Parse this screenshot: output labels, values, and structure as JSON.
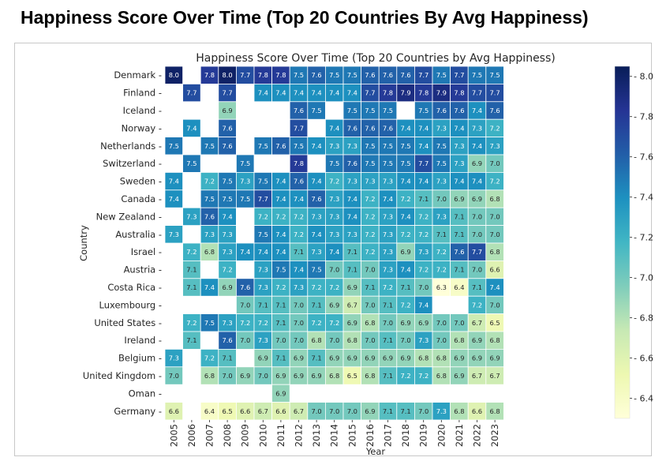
{
  "page": {
    "heading": "Happiness Score Over Time (Top 20 Countries By Avg Happiness)"
  },
  "chart_data": {
    "type": "heatmap",
    "title": "Happiness Score Over Time (Top 20 Countries by Avg Happiness)",
    "xlabel": "Year",
    "ylabel": "Country",
    "colormap": "YlGnBu",
    "value_range": [
      6.3,
      8.05
    ],
    "colorbar_ticks": [
      8.0,
      7.8,
      7.6,
      7.4,
      7.2,
      7.0,
      6.8,
      6.6,
      6.4
    ],
    "years": [
      "2005",
      "2006",
      "2007",
      "2008",
      "2009",
      "2010",
      "2011",
      "2012",
      "2013",
      "2014",
      "2015",
      "2016",
      "2017",
      "2018",
      "2019",
      "2020",
      "2021",
      "2022",
      "2023"
    ],
    "countries": [
      "Denmark",
      "Finland",
      "Iceland",
      "Norway",
      "Netherlands",
      "Switzerland",
      "Sweden",
      "Canada",
      "New Zealand",
      "Australia",
      "Israel",
      "Austria",
      "Costa Rica",
      "Luxembourg",
      "United States",
      "Ireland",
      "Belgium",
      "United Kingdom",
      "Oman",
      "Germany"
    ],
    "values": [
      [
        8.0,
        null,
        7.8,
        8.0,
        7.7,
        7.8,
        7.8,
        7.5,
        7.6,
        7.5,
        7.5,
        7.6,
        7.6,
        7.6,
        7.7,
        7.5,
        7.7,
        7.5,
        7.5
      ],
      [
        null,
        7.7,
        null,
        7.7,
        null,
        7.4,
        7.4,
        7.4,
        7.4,
        7.4,
        7.4,
        7.7,
        7.8,
        7.9,
        7.8,
        7.9,
        7.8,
        7.7,
        7.7
      ],
      [
        null,
        null,
        null,
        6.9,
        null,
        null,
        null,
        7.6,
        7.5,
        null,
        7.5,
        7.5,
        7.5,
        null,
        7.5,
        7.6,
        7.6,
        7.4,
        7.6
      ],
      [
        null,
        7.4,
        null,
        7.6,
        null,
        null,
        null,
        7.7,
        null,
        7.4,
        7.6,
        7.6,
        7.6,
        7.4,
        7.4,
        7.3,
        7.4,
        7.3,
        7.2
      ],
      [
        7.5,
        null,
        7.5,
        7.6,
        null,
        7.5,
        7.6,
        7.5,
        7.4,
        7.3,
        7.3,
        7.5,
        7.5,
        7.5,
        7.4,
        7.5,
        7.3,
        7.4,
        7.3
      ],
      [
        null,
        7.5,
        null,
        null,
        7.5,
        null,
        null,
        7.8,
        null,
        7.5,
        7.6,
        7.5,
        7.5,
        7.5,
        7.7,
        7.5,
        7.3,
        6.9,
        7.0
      ],
      [
        7.4,
        null,
        7.2,
        7.5,
        7.3,
        7.5,
        7.4,
        7.6,
        7.4,
        7.2,
        7.3,
        7.3,
        7.3,
        7.4,
        7.4,
        7.3,
        7.4,
        7.4,
        7.2
      ],
      [
        7.4,
        null,
        7.5,
        7.5,
        7.5,
        7.7,
        7.4,
        7.4,
        7.6,
        7.3,
        7.4,
        7.2,
        7.4,
        7.2,
        7.1,
        7.0,
        6.9,
        6.9,
        6.8
      ],
      [
        null,
        7.3,
        7.6,
        7.4,
        null,
        7.2,
        7.2,
        7.2,
        7.3,
        7.3,
        7.4,
        7.2,
        7.3,
        7.4,
        7.2,
        7.3,
        7.1,
        7.0,
        7.0
      ],
      [
        7.3,
        null,
        7.3,
        7.3,
        null,
        7.5,
        7.4,
        7.2,
        7.4,
        7.3,
        7.3,
        7.2,
        7.3,
        7.2,
        7.2,
        7.1,
        7.1,
        7.0,
        7.0
      ],
      [
        null,
        7.2,
        6.8,
        7.3,
        7.4,
        7.4,
        7.4,
        7.1,
        7.3,
        7.4,
        7.1,
        7.2,
        7.3,
        6.9,
        7.3,
        7.2,
        7.6,
        7.7,
        6.8
      ],
      [
        null,
        7.1,
        null,
        7.2,
        null,
        7.3,
        7.5,
        7.4,
        7.5,
        7.0,
        7.1,
        7.0,
        7.3,
        7.4,
        7.2,
        7.2,
        7.1,
        7.0,
        6.6
      ],
      [
        null,
        7.1,
        7.4,
        6.9,
        7.6,
        7.3,
        7.2,
        7.3,
        7.2,
        7.2,
        6.9,
        7.1,
        7.2,
        7.1,
        7.0,
        6.3,
        6.4,
        7.1,
        7.4
      ],
      [
        null,
        null,
        null,
        null,
        7.0,
        7.1,
        7.1,
        7.0,
        7.1,
        6.9,
        6.7,
        7.0,
        7.1,
        7.2,
        7.4,
        null,
        null,
        7.2,
        7.0
      ],
      [
        null,
        7.2,
        7.5,
        7.3,
        7.2,
        7.2,
        7.1,
        7.0,
        7.2,
        7.2,
        6.9,
        6.8,
        7.0,
        6.9,
        6.9,
        7.0,
        7.0,
        6.7,
        6.5
      ],
      [
        null,
        7.1,
        null,
        7.6,
        7.0,
        7.3,
        7.0,
        7.0,
        6.8,
        7.0,
        6.8,
        7.0,
        7.1,
        7.0,
        7.3,
        7.0,
        6.8,
        6.9,
        6.8
      ],
      [
        7.3,
        null,
        7.2,
        7.1,
        null,
        6.9,
        7.1,
        6.9,
        7.1,
        6.9,
        6.9,
        6.9,
        6.9,
        6.9,
        6.8,
        6.8,
        6.9,
        6.9,
        6.9
      ],
      [
        7.0,
        null,
        6.8,
        7.0,
        6.9,
        7.0,
        6.9,
        6.9,
        6.9,
        6.8,
        6.5,
        6.8,
        7.1,
        7.2,
        7.2,
        6.8,
        6.9,
        6.7,
        6.7
      ],
      [
        null,
        null,
        null,
        null,
        null,
        null,
        6.9,
        null,
        null,
        null,
        null,
        null,
        null,
        null,
        null,
        null,
        null,
        null,
        null
      ],
      [
        6.6,
        null,
        6.4,
        6.5,
        6.6,
        6.7,
        6.6,
        6.7,
        7.0,
        7.0,
        7.0,
        6.9,
        7.1,
        7.1,
        7.0,
        7.3,
        6.8,
        6.6,
        6.8
      ]
    ]
  }
}
